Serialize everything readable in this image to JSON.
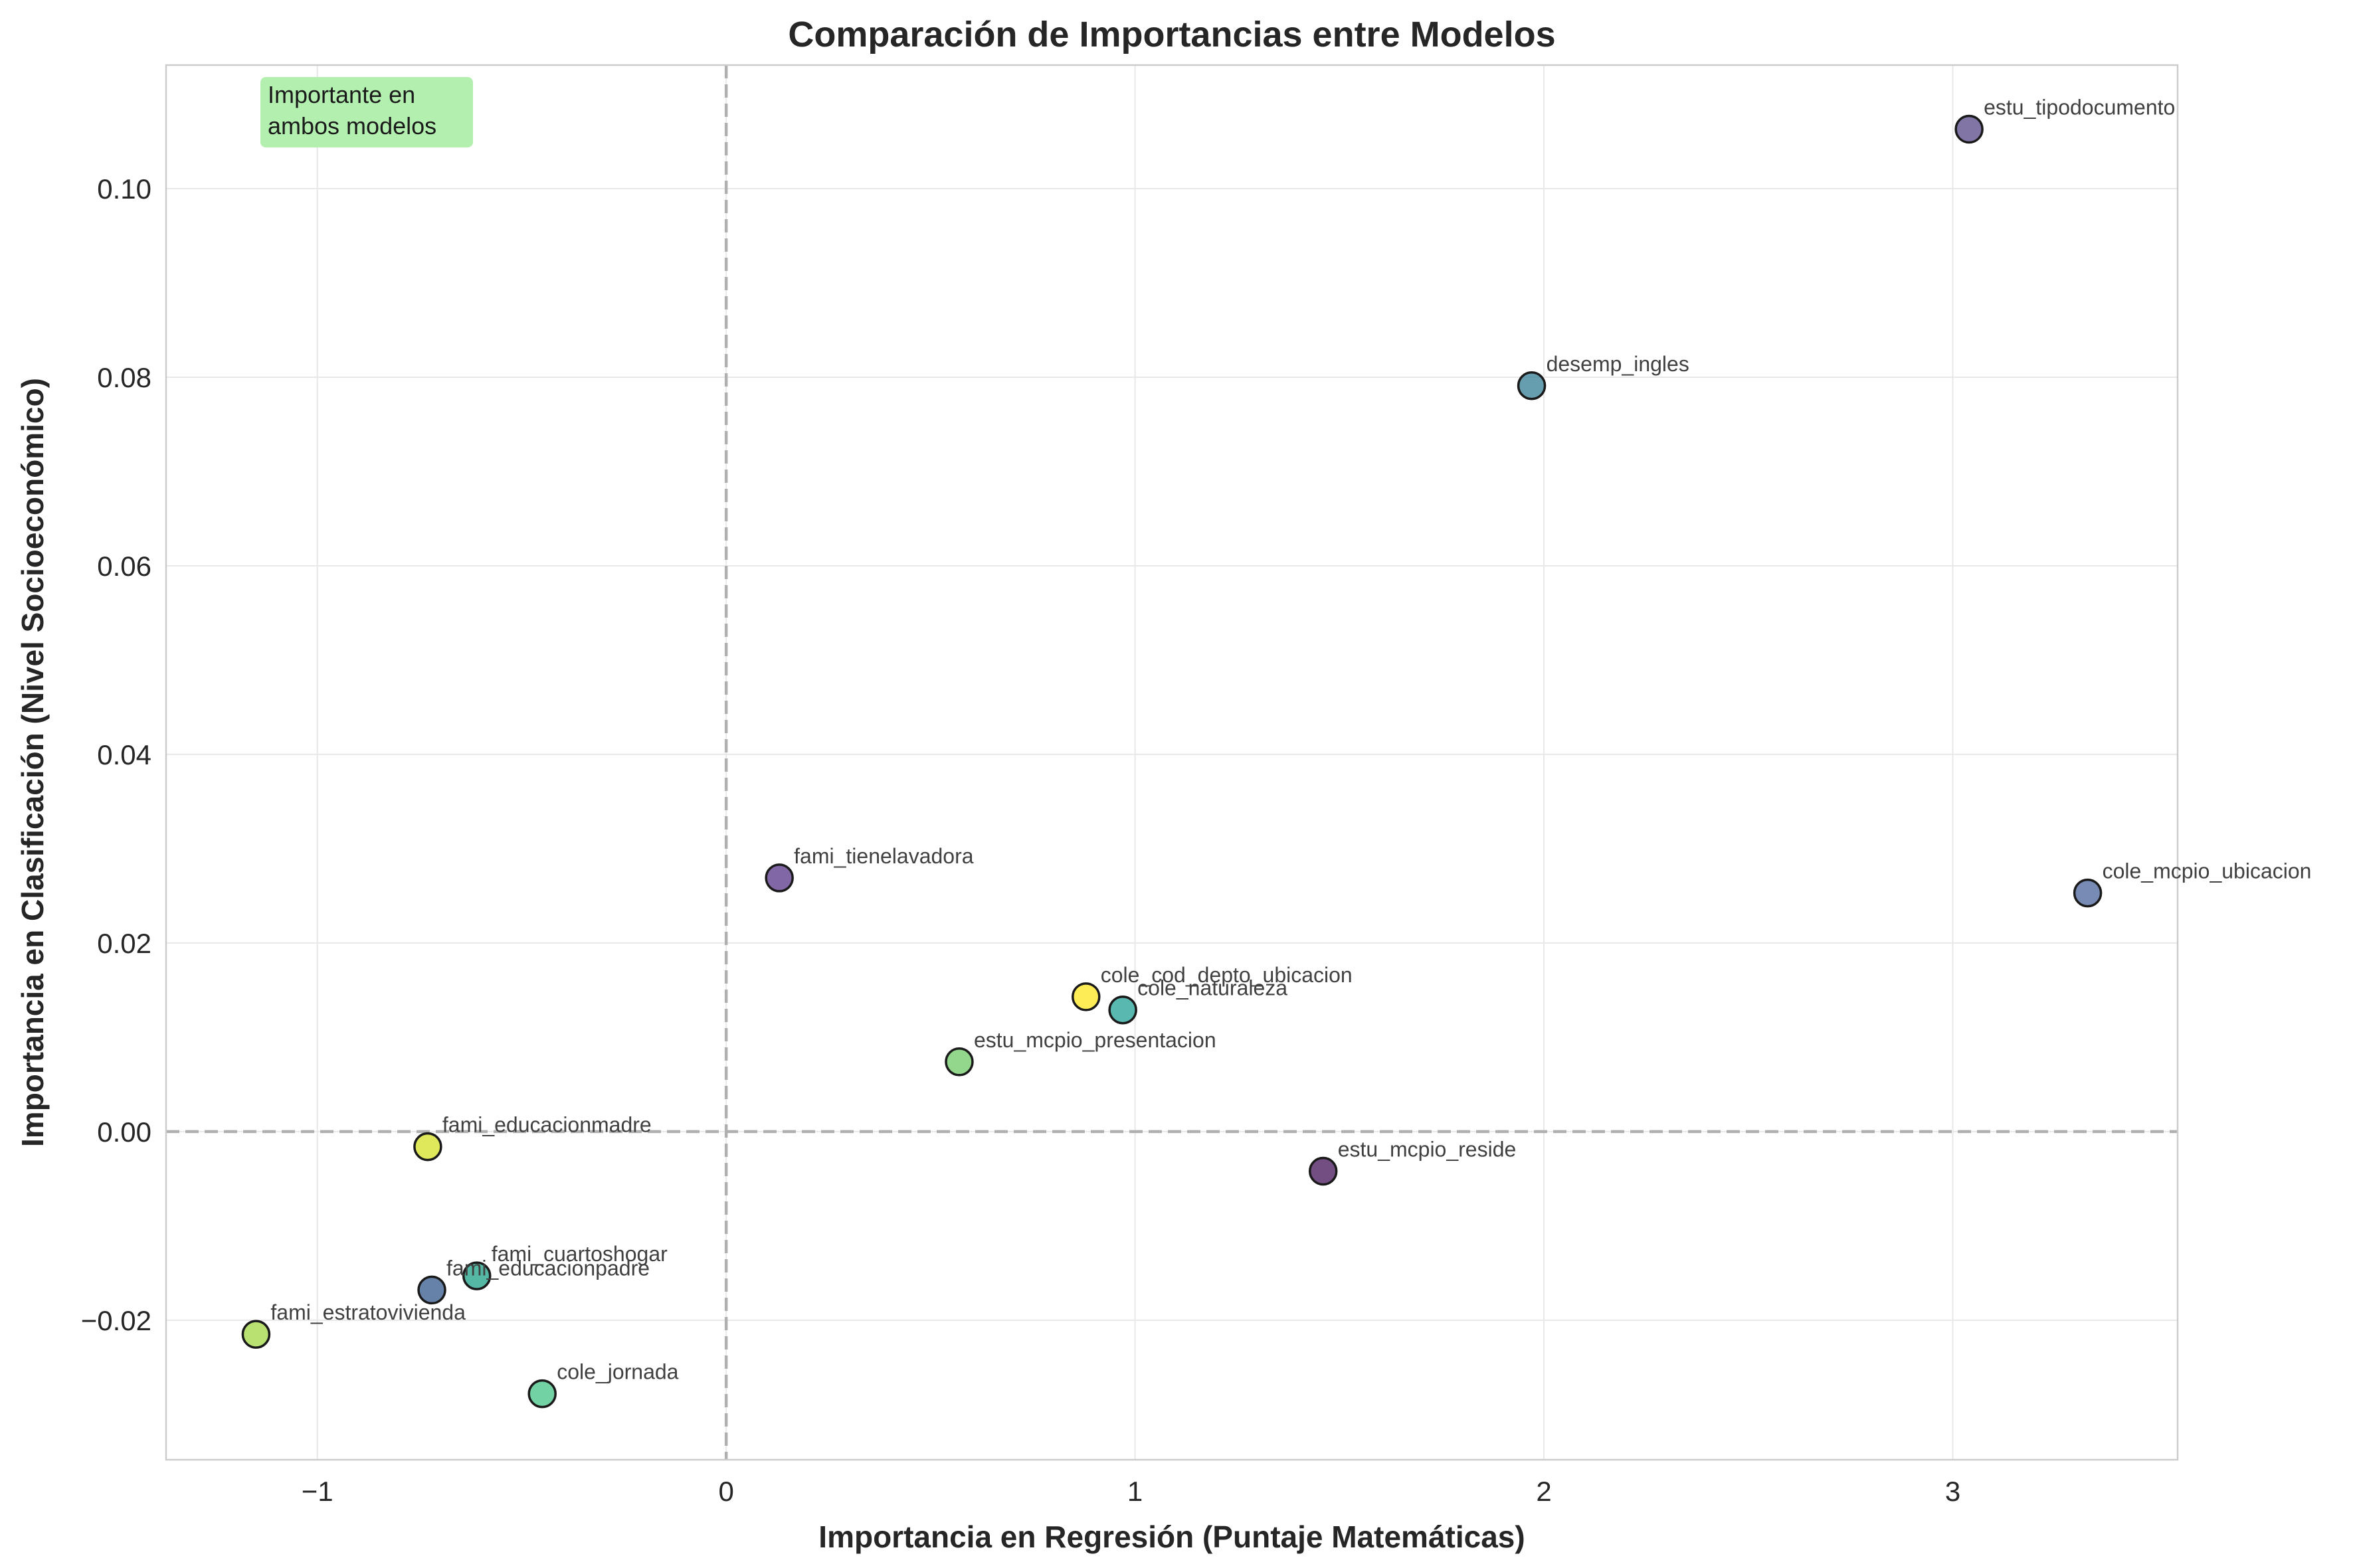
{
  "chart_data": {
    "type": "scatter",
    "title": "Comparación de Importancias entre Modelos",
    "xlabel": "Importancia en Regresión (Puntaje Matemáticas)",
    "ylabel": "Importancia en Clasificación (Nivel Socioeconómico)",
    "xlim": [
      -1.37,
      3.55
    ],
    "ylim": [
      -0.0348,
      0.1131
    ],
    "x_ticks": [
      -1,
      0,
      1,
      2,
      3
    ],
    "x_tick_labels": [
      "−1",
      "0",
      "1",
      "2",
      "3"
    ],
    "y_ticks": [
      -0.02,
      0.0,
      0.02,
      0.04,
      0.06,
      0.08,
      0.1
    ],
    "y_tick_labels": [
      "−0.02",
      "0.00",
      "0.02",
      "0.04",
      "0.06",
      "0.08",
      "0.10"
    ],
    "grid": true,
    "reference_lines": {
      "x": 0,
      "y": 0,
      "style": "dashed",
      "color": "#b0b0b0"
    },
    "annotation": {
      "lines": [
        "Importante en",
        "ambos modelos"
      ],
      "position": "top-left",
      "background": "#b3f0b0"
    },
    "points": [
      {
        "label": "estu_tipodocumento",
        "x": 3.04,
        "y": 0.1063,
        "color": "#5d4e8c"
      },
      {
        "label": "desemp_ingles",
        "x": 1.97,
        "y": 0.0791,
        "color": "#3b8398"
      },
      {
        "label": "cole_mcpio_ubicacion",
        "x": 3.33,
        "y": 0.0253,
        "color": "#526aa0"
      },
      {
        "label": "fami_tienelavadora",
        "x": 0.13,
        "y": 0.0269,
        "color": "#5e3c8c"
      },
      {
        "label": "cole_cod_depto_ubicacion",
        "x": 0.88,
        "y": 0.0143,
        "color": "#fde725"
      },
      {
        "label": "cole_naturaleza",
        "x": 0.97,
        "y": 0.0129,
        "color": "#2aa59b"
      },
      {
        "label": "estu_mcpio_presentacion",
        "x": 0.57,
        "y": 0.0074,
        "color": "#73cc6b"
      },
      {
        "label": "estu_mcpio_reside",
        "x": 1.46,
        "y": -0.0042,
        "color": "#4b1c60"
      },
      {
        "label": "fami_educacionmadre",
        "x": -0.73,
        "y": -0.0016,
        "color": "#d6e02c"
      },
      {
        "label": "fami_cuartoshogar",
        "x": -0.61,
        "y": -0.0153,
        "color": "#25a48b"
      },
      {
        "label": "fami_educacionpadre",
        "x": -0.72,
        "y": -0.0168,
        "color": "#3c5f8f"
      },
      {
        "label": "fami_estratovivienda",
        "x": -1.15,
        "y": -0.0215,
        "color": "#a4d94a"
      },
      {
        "label": "cole_jornada",
        "x": -0.45,
        "y": -0.0278,
        "color": "#4cc58a"
      }
    ]
  }
}
